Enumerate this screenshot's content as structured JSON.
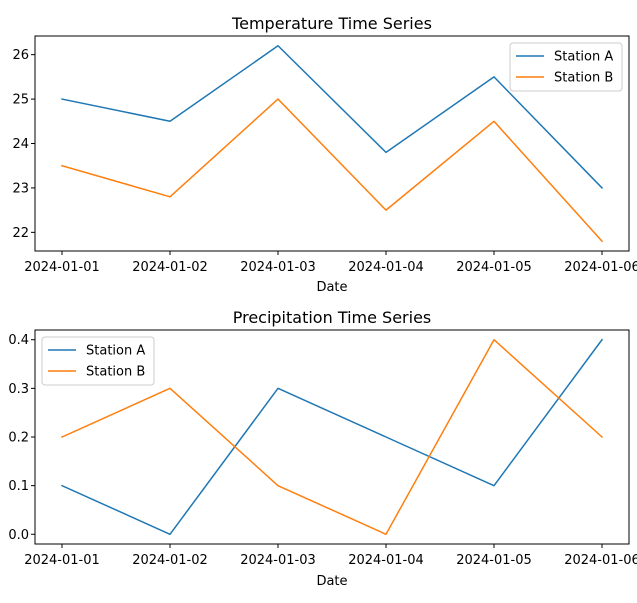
{
  "chart_data": [
    {
      "type": "line",
      "title": "Temperature Time Series",
      "xlabel": "Date",
      "ylabel": "",
      "categories": [
        "2024-01-01",
        "2024-01-02",
        "2024-01-03",
        "2024-01-04",
        "2024-01-05",
        "2024-01-06"
      ],
      "ylim": [
        21.58,
        26.42
      ],
      "yticks": [
        22,
        23,
        24,
        25,
        26
      ],
      "grid": false,
      "legend_position": "upper right",
      "series": [
        {
          "name": "Station A",
          "color": "#1f77b4",
          "values": [
            25.0,
            24.5,
            26.2,
            23.8,
            25.5,
            23.0
          ]
        },
        {
          "name": "Station B",
          "color": "#ff7f0e",
          "values": [
            23.5,
            22.8,
            25.0,
            22.5,
            24.5,
            21.8
          ]
        }
      ]
    },
    {
      "type": "line",
      "title": "Precipitation Time Series",
      "xlabel": "Date",
      "ylabel": "",
      "categories": [
        "2024-01-01",
        "2024-01-02",
        "2024-01-03",
        "2024-01-04",
        "2024-01-05",
        "2024-01-06"
      ],
      "ylim": [
        -0.02,
        0.42
      ],
      "yticks": [
        0.0,
        0.1,
        0.2,
        0.3,
        0.4
      ],
      "ytick_labels": [
        "0.0",
        "0.1",
        "0.2",
        "0.3",
        "0.4"
      ],
      "grid": false,
      "legend_position": "upper left",
      "series": [
        {
          "name": "Station A",
          "color": "#1f77b4",
          "values": [
            0.1,
            0.0,
            0.3,
            0.2,
            0.1,
            0.4
          ]
        },
        {
          "name": "Station B",
          "color": "#ff7f0e",
          "values": [
            0.2,
            0.3,
            0.1,
            0.0,
            0.4,
            0.2
          ]
        }
      ]
    }
  ]
}
